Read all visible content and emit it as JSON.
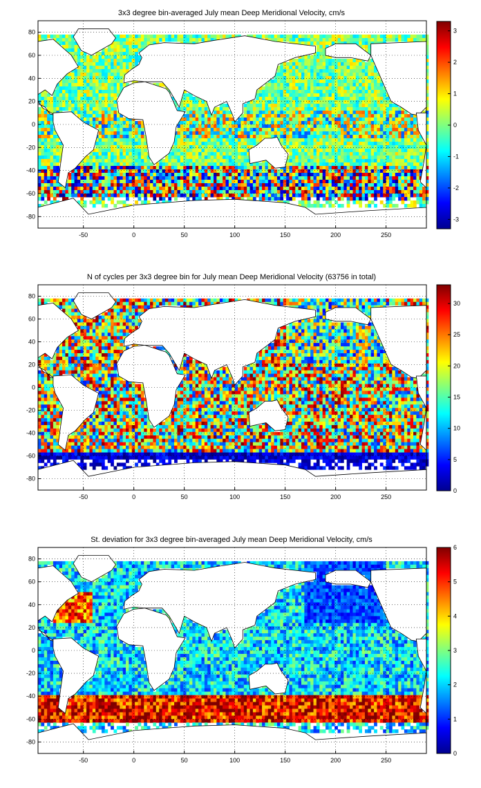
{
  "figure": {
    "panels": [
      {
        "title": "3x3 degree bin-averaged July mean Deep Meridional Velocity, cm/s",
        "quantity": "velocity",
        "colorbar": {
          "ticks": [
            "3",
            "2",
            "1",
            "0",
            "-1",
            "-2",
            "-3"
          ],
          "range": [
            -3.3,
            3.3
          ]
        }
      },
      {
        "title": "N of cycles per 3x3 degree bin for July mean Deep Meridional Velocity (63756 in total)",
        "quantity": "count",
        "colorbar": {
          "ticks": [
            "30",
            "25",
            "20",
            "15",
            "10",
            "5",
            "0"
          ],
          "range": [
            0,
            33
          ]
        }
      },
      {
        "title": "St. deviation for 3x3 degree bin-averaged July mean Deep Meridional Velocity, cm/s",
        "quantity": "stdev",
        "colorbar": {
          "ticks": [
            "6",
            "5",
            "4",
            "3",
            "2",
            "1",
            "0"
          ],
          "range": [
            0,
            6
          ]
        }
      }
    ],
    "x_ticks": [
      "-50",
      "0",
      "50",
      "100",
      "150",
      "200",
      "250"
    ],
    "y_ticks": [
      "80",
      "60",
      "40",
      "20",
      "0",
      "-20",
      "-40",
      "-60",
      "-80"
    ],
    "x_range": [
      -95,
      290
    ],
    "y_range": [
      -90,
      90
    ],
    "colormap": "jet",
    "land_color": "#ffffff",
    "coastline_color": "#000000"
  }
}
